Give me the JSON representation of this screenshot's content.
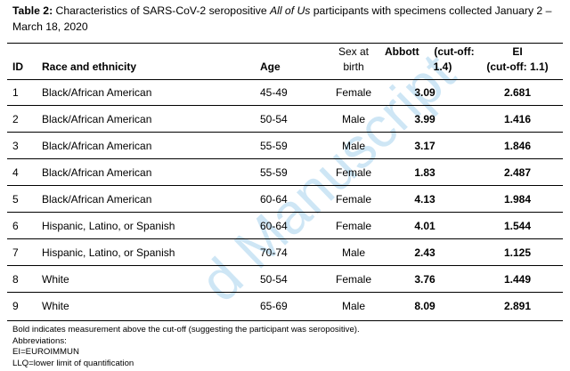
{
  "caption": {
    "label": "Table 2:",
    "text_before": " Characteristics of SARS-CoV-2 seropositive ",
    "italic": "All of Us",
    "text_after": " participants with specimens collected January 2 – March 18, 2020"
  },
  "headers": {
    "id": "ID",
    "race": "Race and ethnicity",
    "age": "Age",
    "sex_line1": "Sex at",
    "sex_line2": "birth",
    "abbott_line1": "Abbott     (cut-off:",
    "abbott_line2": "1.4)",
    "ei_line1": "EI",
    "ei_line2": "(cut-off: 1.1)"
  },
  "rows": [
    {
      "id": "1",
      "race": "Black/African American",
      "age": "45-49",
      "sex": "Female",
      "abbott": "3.09",
      "ei": "2.681"
    },
    {
      "id": "2",
      "race": "Black/African American",
      "age": "50-54",
      "sex": "Male",
      "abbott": "3.99",
      "ei": "1.416"
    },
    {
      "id": "3",
      "race": "Black/African American",
      "age": "55-59",
      "sex": "Male",
      "abbott": "3.17",
      "ei": "1.846"
    },
    {
      "id": "4",
      "race": "Black/African American",
      "age": "55-59",
      "sex": "Female",
      "abbott": "1.83",
      "ei": "2.487"
    },
    {
      "id": "5",
      "race": "Black/African American",
      "age": "60-64",
      "sex": "Female",
      "abbott": "4.13",
      "ei": "1.984"
    },
    {
      "id": "6",
      "race": "Hispanic, Latino, or Spanish",
      "age": "60-64",
      "sex": "Female",
      "abbott": "4.01",
      "ei": "1.544"
    },
    {
      "id": "7",
      "race": "Hispanic, Latino, or Spanish",
      "age": "70-74",
      "sex": "Male",
      "abbott": "2.43",
      "ei": "1.125"
    },
    {
      "id": "8",
      "race": "White",
      "age": "50-54",
      "sex": "Female",
      "abbott": "3.76",
      "ei": "1.449"
    },
    {
      "id": "9",
      "race": "White",
      "age": "65-69",
      "sex": "Male",
      "abbott": "8.09",
      "ei": "2.891"
    }
  ],
  "notes": [
    "Bold indicates measurement above the cut-off (suggesting the participant was seropositive).",
    "Abbreviations:",
    "EI=EUROIMMUN",
    "LLQ=lower limit of quantification"
  ],
  "watermark": "d Manuscript"
}
